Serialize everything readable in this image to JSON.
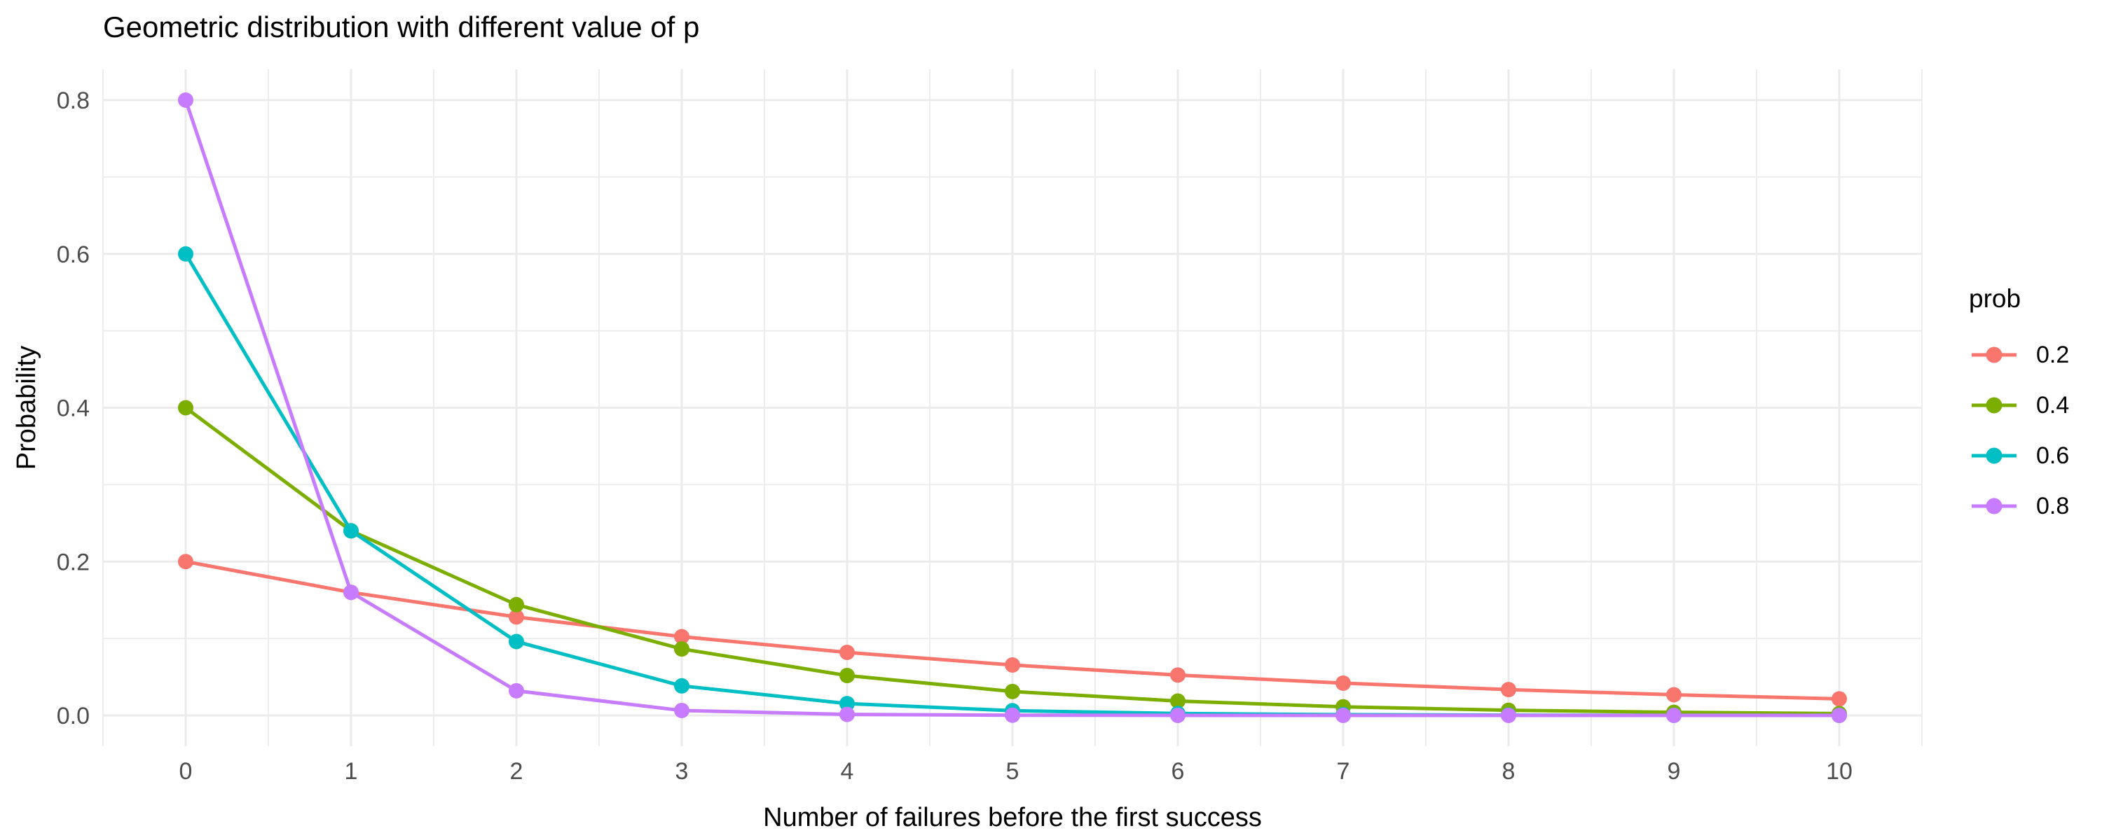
{
  "title": "Geometric distribution with different value of p",
  "chart_data": {
    "type": "line",
    "title": "Geometric distribution with different value of p",
    "xlabel": "Number of failures before the first success",
    "ylabel": "Probability",
    "x": [
      0,
      1,
      2,
      3,
      4,
      5,
      6,
      7,
      8,
      9,
      10
    ],
    "x_tick_labels": [
      "0",
      "1",
      "2",
      "3",
      "4",
      "5",
      "6",
      "7",
      "8",
      "9",
      "10"
    ],
    "y_ticks": [
      0.0,
      0.2,
      0.4,
      0.6,
      0.8
    ],
    "y_tick_labels": [
      "0.0",
      "0.2",
      "0.4",
      "0.6",
      "0.8"
    ],
    "y_minor_ticks": [
      0.1,
      0.3,
      0.5,
      0.7
    ],
    "xlim": [
      -0.5,
      10.5
    ],
    "ylim": [
      -0.04,
      0.84
    ],
    "grid": {
      "major": true,
      "minor": true,
      "color": "#EBEBEB"
    },
    "background": "#FFFFFF",
    "text_colors": {
      "tick": "#4D4D4D",
      "title": "#000000",
      "axis_title": "#000000"
    },
    "legend": {
      "title": "prob",
      "position": "right"
    },
    "series": [
      {
        "name": "0.2",
        "prob": 0.2,
        "color": "#F8766D",
        "values": [
          0.2,
          0.16,
          0.128,
          0.1024,
          0.08192,
          0.065536,
          0.0524288,
          0.04194304,
          0.03355443,
          0.02684355,
          0.02147484
        ]
      },
      {
        "name": "0.4",
        "prob": 0.4,
        "color": "#7CAE00",
        "values": [
          0.4,
          0.24,
          0.144,
          0.0864,
          0.05184,
          0.031104,
          0.0186624,
          0.01119744,
          0.00671846,
          0.00403108,
          0.00241865
        ]
      },
      {
        "name": "0.6",
        "prob": 0.6,
        "color": "#00BFC4",
        "values": [
          0.6,
          0.24,
          0.096,
          0.0384,
          0.01536,
          0.006144,
          0.0024576,
          0.00098304,
          0.00039322,
          0.00015729,
          6.291e-05
        ]
      },
      {
        "name": "0.8",
        "prob": 0.8,
        "color": "#C77CFF",
        "values": [
          0.8,
          0.16,
          0.032,
          0.0064,
          0.00128,
          0.000256,
          5.12e-05,
          1.024e-05,
          2.05e-06,
          4.1e-07,
          8e-08
        ]
      }
    ]
  }
}
